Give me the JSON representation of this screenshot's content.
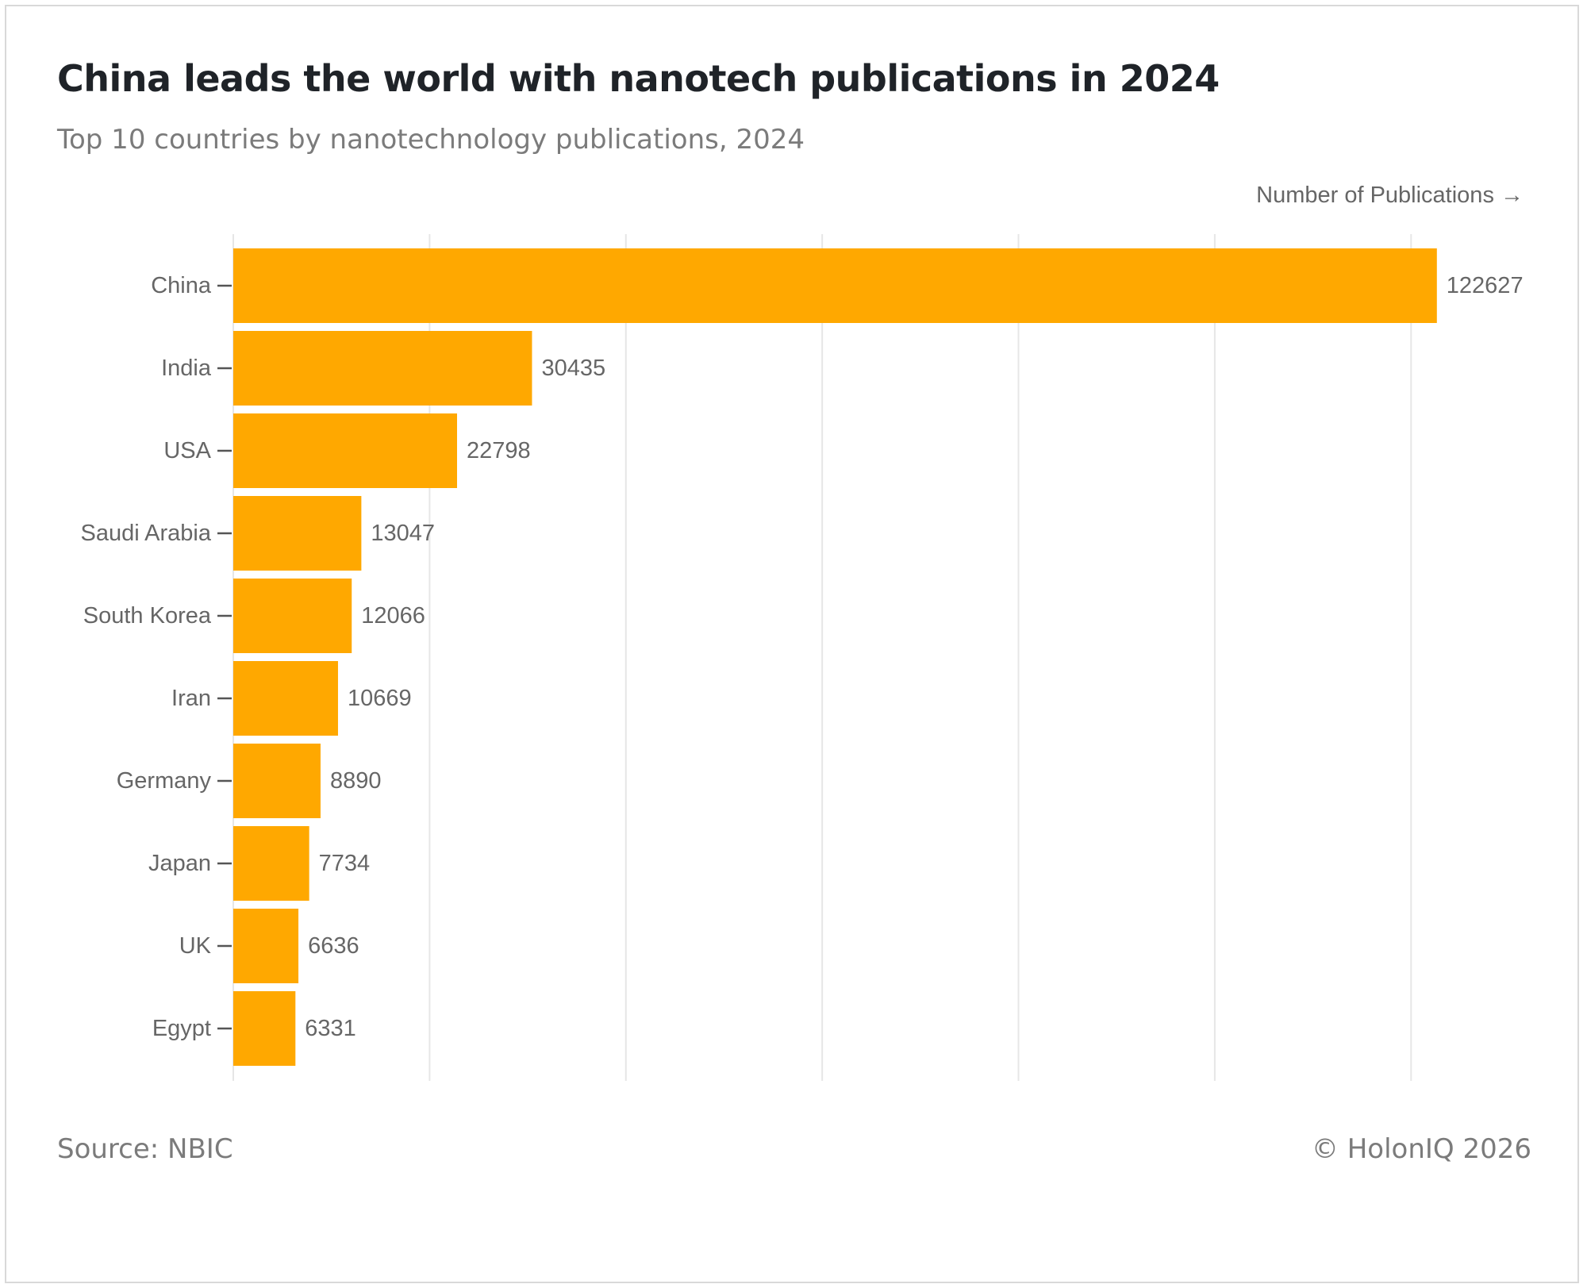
{
  "title": "China leads the world with nanotech publications in 2024",
  "subtitle": "Top 10 countries by nanotechnology publications, 2024",
  "footer": {
    "source": "Source: NBIC",
    "copyright": "© HolonIQ 2026"
  },
  "colors": {
    "bar": "#FFA800",
    "grid": "#e6e6e6",
    "text": "#666666"
  },
  "chart_data": {
    "type": "bar",
    "orientation": "horizontal",
    "title": "China leads the world with nanotech publications in 2024",
    "subtitle": "Top 10 countries by nanotechnology publications, 2024",
    "xlabel": "Number of Publications →",
    "ylabel": "",
    "categories": [
      "China",
      "India",
      "USA",
      "Saudi Arabia",
      "South Korea",
      "Iran",
      "Germany",
      "Japan",
      "UK",
      "Egypt"
    ],
    "values": [
      122627,
      30435,
      22798,
      13047,
      12066,
      10669,
      8890,
      7734,
      6636,
      6331
    ],
    "xlim": [
      0,
      130000
    ],
    "x_gridlines": [
      0,
      20000,
      40000,
      60000,
      80000,
      100000,
      120000
    ],
    "grid": true,
    "x_tick_labels_shown": false,
    "data_labels": true
  }
}
